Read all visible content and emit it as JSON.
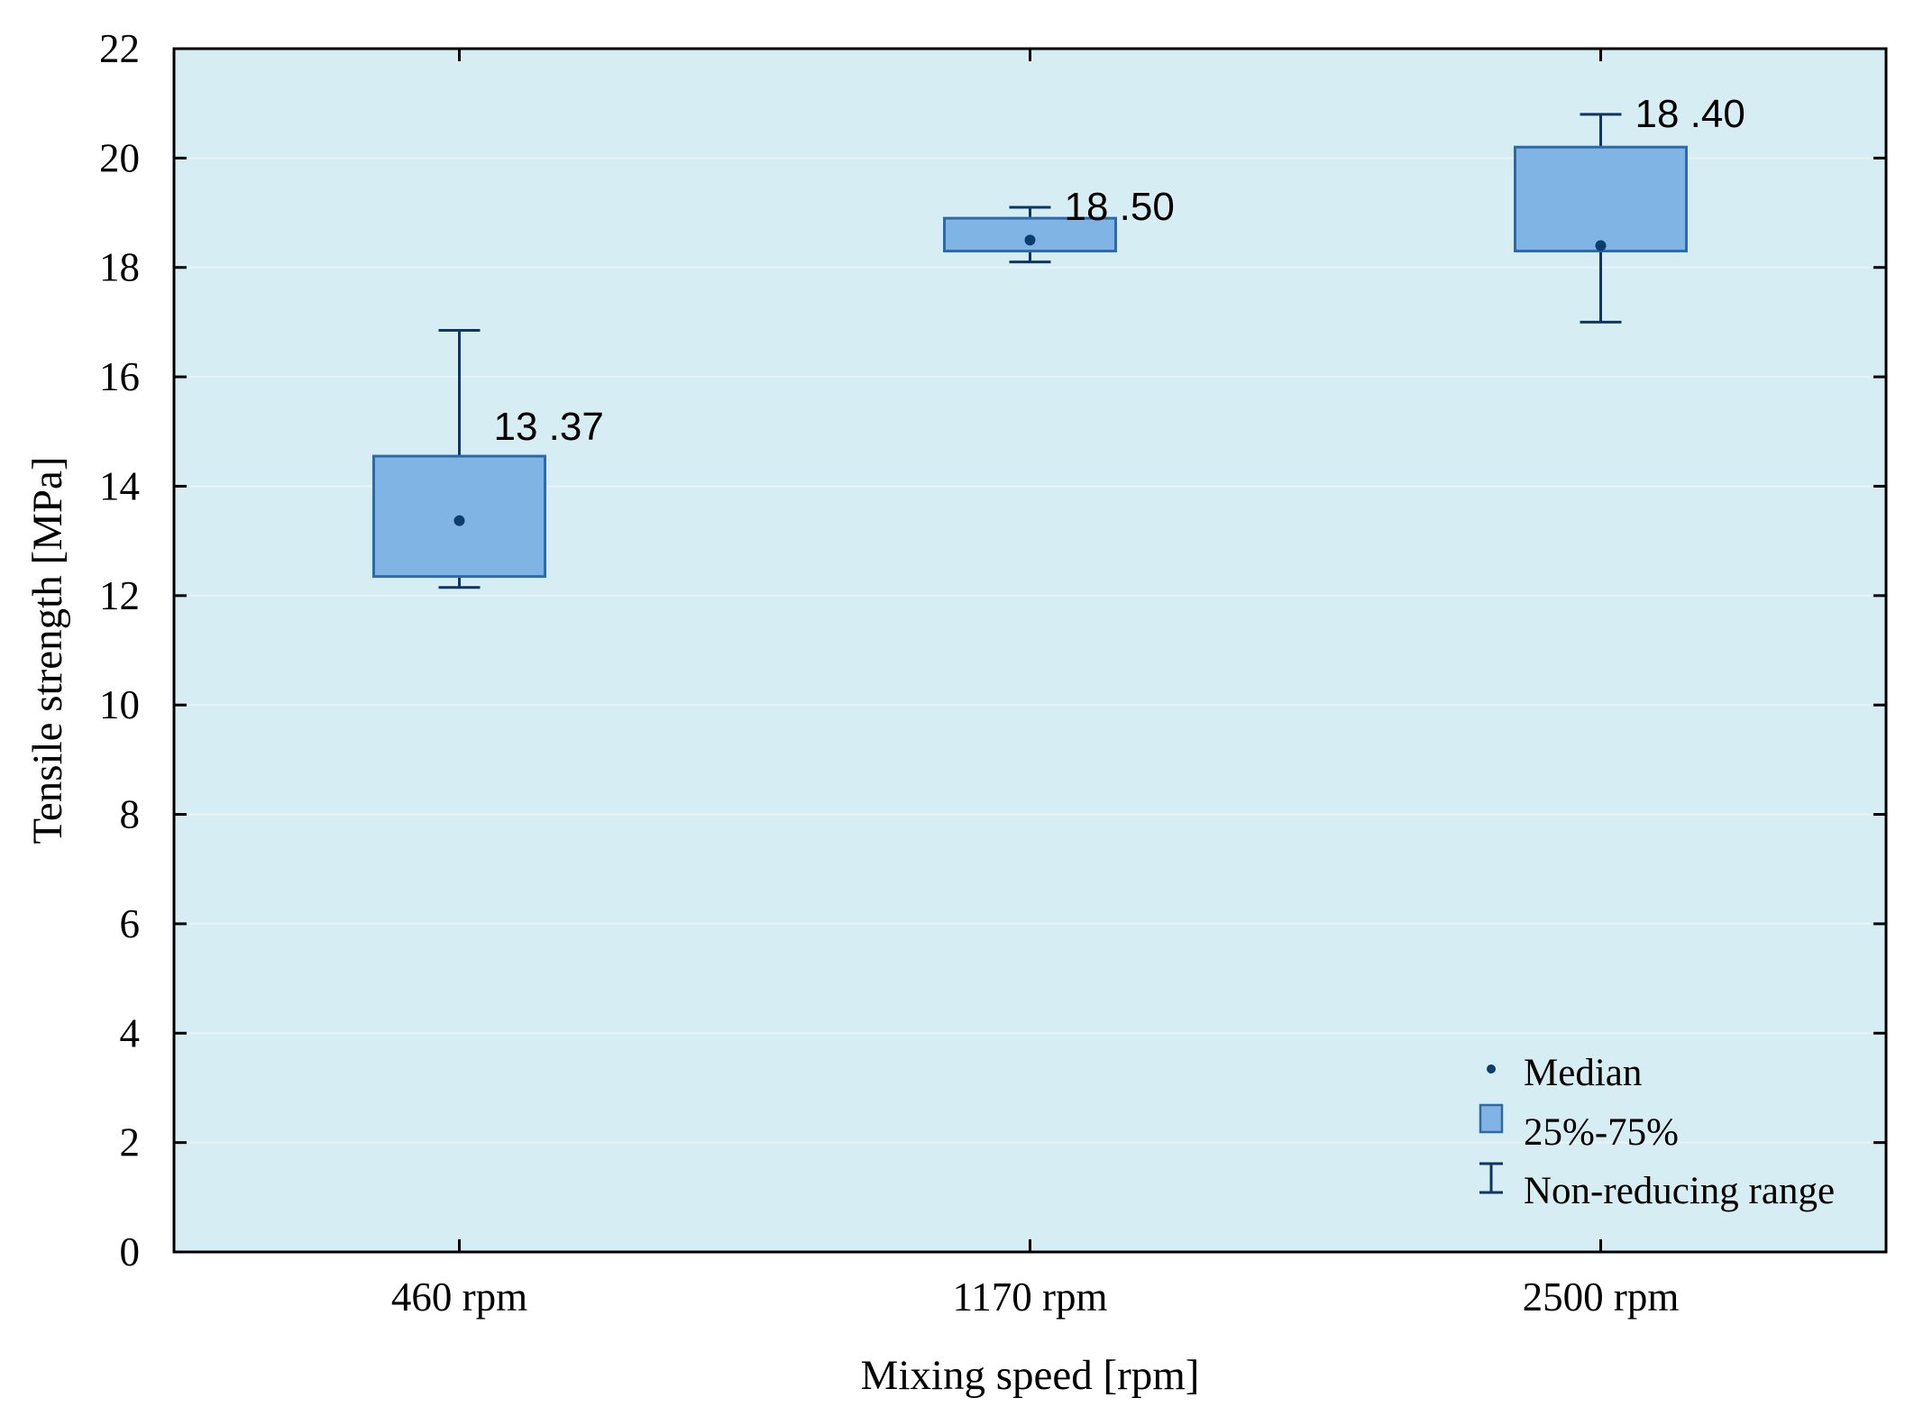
{
  "chart_data": {
    "type": "box",
    "title": "",
    "xlabel": "Mixing speed [rpm]",
    "ylabel": "Tensile strength [MPa]",
    "ylim": [
      0,
      22
    ],
    "yticks": [
      "0",
      "2",
      "4",
      "6",
      "8",
      "10",
      "12",
      "14",
      "16",
      "18",
      "20",
      "22"
    ],
    "grid": "horizontal",
    "categories": [
      "460 rpm",
      "1170 rpm",
      "2500 rpm"
    ],
    "boxes": [
      {
        "category": "460 rpm",
        "median": 13.37,
        "q1": 12.35,
        "q3": 14.55,
        "min": 12.15,
        "max": 16.85,
        "label": "13 .37"
      },
      {
        "category": "1170 rpm",
        "median": 18.5,
        "q1": 18.3,
        "q3": 18.9,
        "min": 18.1,
        "max": 19.1,
        "label": "18 .50"
      },
      {
        "category": "2500 rpm",
        "median": 18.4,
        "q1": 18.3,
        "q3": 20.2,
        "min": 17.0,
        "max": 20.8,
        "label": "18 .40"
      }
    ],
    "legend": {
      "position": "bottom-right",
      "items": [
        {
          "symbol": "median",
          "label": "Median"
        },
        {
          "symbol": "box",
          "label": "25%-75%"
        },
        {
          "symbol": "whisker",
          "label": "Non-reducing range"
        }
      ]
    },
    "colors": {
      "plot_background": "#d6eef3",
      "box_fill": "#80b4e4",
      "box_stroke": "#2e6aa8",
      "whisker": "#0f3560",
      "median": "#0d3c70",
      "axis": "#000000",
      "grid": "#e6f4f7"
    }
  }
}
